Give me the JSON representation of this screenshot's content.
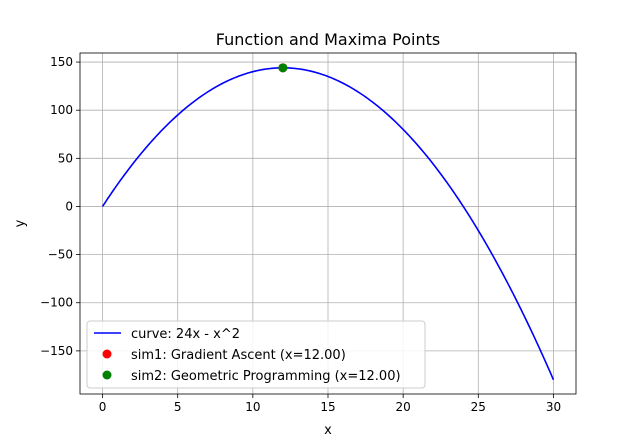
{
  "chart_data": {
    "type": "line",
    "title": "Function and Maxima Points",
    "xlabel": "x",
    "ylabel": "y",
    "xlim": [
      -1.5,
      31.5
    ],
    "ylim": [
      -194.8,
      159.4
    ],
    "xticks": [
      0,
      5,
      10,
      15,
      20,
      25,
      30
    ],
    "yticks": [
      -150,
      -100,
      -50,
      0,
      50,
      100,
      150
    ],
    "grid": true,
    "legend_position": "lower-left",
    "series": [
      {
        "name": "curve: 24x - x^2",
        "kind": "line",
        "color": "#0000ff",
        "formula": "24x - x^2",
        "x_range": [
          0,
          30
        ]
      },
      {
        "name": "sim1: Gradient Ascent (x=12.00)",
        "kind": "scatter",
        "color": "#ff0000",
        "points": [
          {
            "x": 12,
            "y": 144
          }
        ]
      },
      {
        "name": "sim2: Geometric Programming (x=12.00)",
        "kind": "scatter",
        "color": "#008000",
        "points": [
          {
            "x": 12,
            "y": 144
          }
        ]
      }
    ]
  }
}
